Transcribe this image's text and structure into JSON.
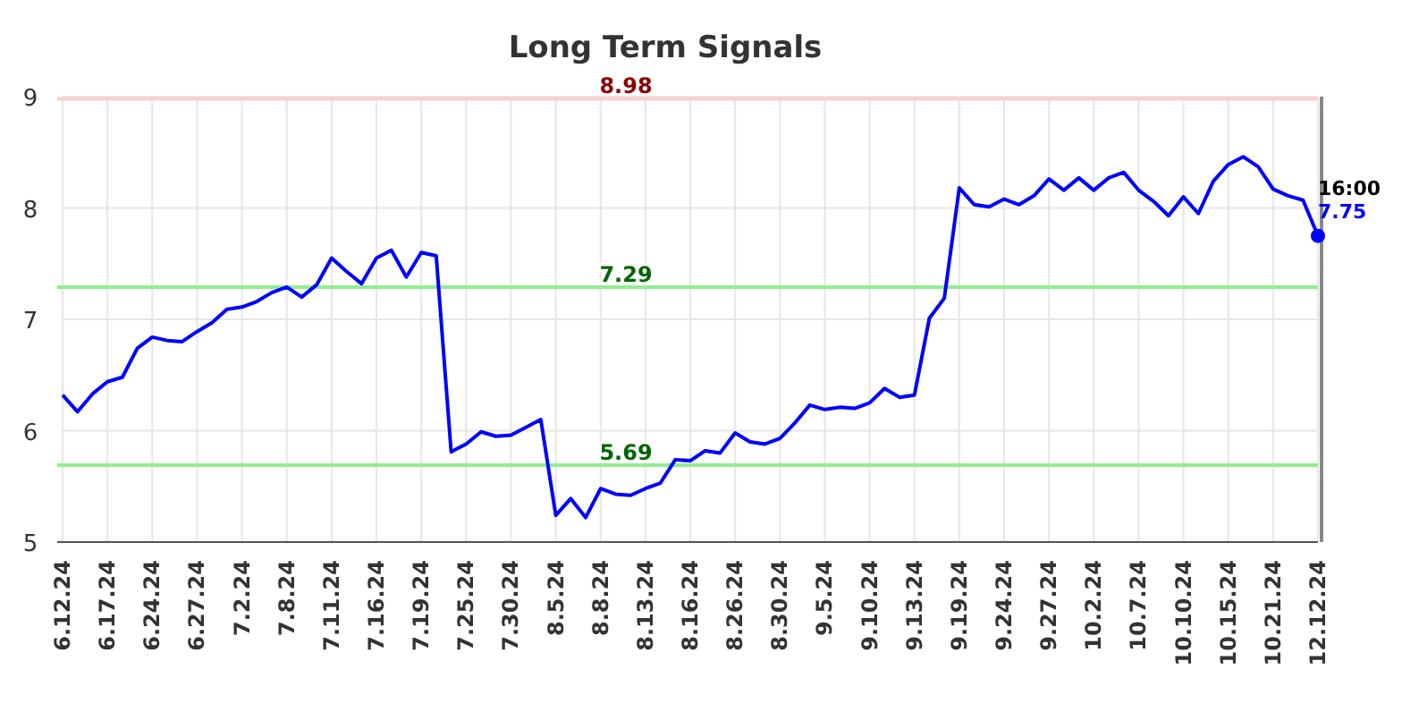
{
  "chart_data": {
    "type": "line",
    "title": "Long Term Signals",
    "categories": [
      "6.12.24",
      null,
      null,
      "6.17.24",
      null,
      null,
      "6.24.24",
      null,
      null,
      "6.27.24",
      null,
      null,
      "7.2.24",
      null,
      null,
      "7.8.24",
      null,
      null,
      "7.11.24",
      null,
      null,
      "7.16.24",
      null,
      null,
      "7.19.24",
      null,
      null,
      "7.25.24",
      null,
      null,
      "7.30.24",
      null,
      null,
      "8.5.24",
      null,
      null,
      "8.8.24",
      null,
      null,
      "8.13.24",
      null,
      null,
      "8.16.24",
      null,
      null,
      "8.26.24",
      null,
      null,
      "8.30.24",
      null,
      null,
      "9.5.24",
      null,
      null,
      "9.10.24",
      null,
      null,
      "9.13.24",
      null,
      null,
      "9.19.24",
      null,
      null,
      "9.24.24",
      null,
      null,
      "9.27.24",
      null,
      null,
      "10.2.24",
      null,
      null,
      "10.7.24",
      null,
      null,
      "10.10.24",
      null,
      null,
      "10.15.24",
      null,
      null,
      "10.21.24",
      null,
      null,
      "12.12.24"
    ],
    "series": [
      {
        "color": "#0000ff",
        "values": [
          6.32,
          6.17,
          6.33,
          6.44,
          6.48,
          6.74,
          6.84,
          6.81,
          6.8,
          6.89,
          6.97,
          7.09,
          7.11,
          7.16,
          7.24,
          7.29,
          7.2,
          7.31,
          7.55,
          7.43,
          7.32,
          7.55,
          7.62,
          7.38,
          7.6,
          7.57,
          5.81,
          5.88,
          5.99,
          5.95,
          5.96,
          6.03,
          6.1,
          5.24,
          5.39,
          5.22,
          5.48,
          5.43,
          5.42,
          5.48,
          5.53,
          5.74,
          5.73,
          5.82,
          5.8,
          5.98,
          5.9,
          5.88,
          5.93,
          6.07,
          6.23,
          6.19,
          6.21,
          6.2,
          6.25,
          6.38,
          6.3,
          6.32,
          7.01,
          7.19,
          8.18,
          8.03,
          8.01,
          8.08,
          8.03,
          8.11,
          8.26,
          8.16,
          8.27,
          8.16,
          8.27,
          8.32,
          8.16,
          8.06,
          7.93,
          8.1,
          7.95,
          8.24,
          8.39,
          8.46,
          8.37,
          8.17,
          8.11,
          8.07,
          7.75
        ]
      },
      {
        "type": "scatter",
        "color": "#0000ff",
        "marker": "circle",
        "values": [
          null,
          null,
          null,
          null,
          null,
          null,
          null,
          null,
          null,
          null,
          null,
          null,
          null,
          null,
          null,
          null,
          null,
          null,
          null,
          null,
          null,
          null,
          null,
          null,
          null,
          null,
          null,
          null,
          null,
          null,
          null,
          null,
          null,
          null,
          null,
          null,
          null,
          null,
          null,
          null,
          null,
          null,
          null,
          null,
          null,
          null,
          null,
          null,
          null,
          null,
          null,
          null,
          null,
          null,
          null,
          null,
          null,
          null,
          null,
          null,
          null,
          null,
          null,
          null,
          null,
          null,
          null,
          null,
          null,
          null,
          null,
          null,
          null,
          null,
          null,
          null,
          null,
          null,
          null,
          null,
          null,
          null,
          null,
          null,
          7.75
        ],
        "value_labels": [
          null,
          null,
          null,
          null,
          null,
          null,
          null,
          null,
          null,
          null,
          null,
          null,
          null,
          null,
          null,
          null,
          null,
          null,
          null,
          null,
          null,
          null,
          null,
          null,
          null,
          null,
          null,
          null,
          null,
          null,
          null,
          null,
          null,
          null,
          null,
          null,
          null,
          null,
          null,
          null,
          null,
          null,
          null,
          null,
          null,
          null,
          null,
          null,
          null,
          null,
          null,
          null,
          null,
          null,
          null,
          null,
          null,
          null,
          null,
          null,
          null,
          null,
          null,
          null,
          null,
          null,
          null,
          null,
          null,
          null,
          null,
          null,
          null,
          null,
          null,
          null,
          null,
          null,
          null,
          null,
          null,
          null,
          null,
          null,
          "7.75"
        ]
      }
    ],
    "ylim": [
      5,
      9
    ],
    "yticks": [
      5,
      6,
      7,
      8,
      9
    ],
    "grid": true,
    "marker": "none",
    "line_style": "solid",
    "ref_lines": [
      {
        "axis": "y",
        "value": 8.98,
        "label": "8.98",
        "color": "#ffcccc"
      },
      {
        "axis": "y",
        "value": 7.29,
        "label": "7.29",
        "color": "#90ee90"
      },
      {
        "axis": "y",
        "value": 5.69,
        "label": "5.69",
        "color": "#90ee90"
      }
    ],
    "annotations": [
      {
        "text": "16:00",
        "x": "12.12.24",
        "y": 7.75
      }
    ]
  }
}
